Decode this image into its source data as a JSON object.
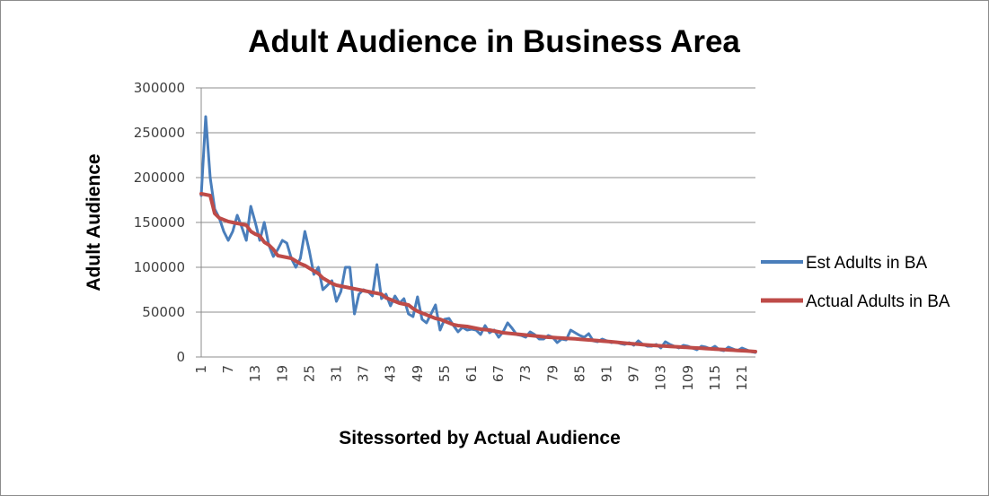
{
  "chart_data": {
    "type": "line",
    "title": "Adult Audience in Business Area",
    "xlabel": "Sitessorted by Actual Audience",
    "ylabel": "Adult Audience",
    "ylim": [
      0,
      300000
    ],
    "yticks": [
      0,
      50000,
      100000,
      150000,
      200000,
      250000,
      300000
    ],
    "ytick_labels": [
      "0",
      "50000",
      "100000",
      "150000",
      "200000",
      "250000",
      "300000"
    ],
    "xlim": [
      1,
      124
    ],
    "xticks": [
      1,
      7,
      13,
      19,
      25,
      31,
      37,
      43,
      49,
      55,
      61,
      67,
      73,
      79,
      85,
      91,
      97,
      103,
      109,
      115,
      121
    ],
    "xtick_labels": [
      "1",
      "7",
      "13",
      "19",
      "25",
      "31",
      "37",
      "43",
      "49",
      "55",
      "61",
      "67",
      "73",
      "79",
      "85",
      "91",
      "97",
      "103",
      "109",
      "115",
      "121"
    ],
    "grid": true,
    "legend_position": "right",
    "series": [
      {
        "name": "Est Adults in BA",
        "color": "#4a7ebb",
        "values": [
          180000,
          268000,
          200000,
          165000,
          155000,
          140000,
          130000,
          140000,
          158000,
          145000,
          130000,
          168000,
          150000,
          130000,
          150000,
          125000,
          112000,
          120000,
          130000,
          127000,
          110000,
          100000,
          110000,
          140000,
          118000,
          92000,
          100000,
          75000,
          80000,
          85000,
          62000,
          73000,
          100000,
          100000,
          48000,
          70000,
          75000,
          73000,
          68000,
          103000,
          65000,
          70000,
          57000,
          68000,
          60000,
          65000,
          48000,
          45000,
          67000,
          42000,
          38000,
          48000,
          58000,
          30000,
          42000,
          43000,
          35000,
          28000,
          33000,
          30000,
          31000,
          30000,
          25000,
          35000,
          27000,
          30000,
          22000,
          28000,
          38000,
          32000,
          25000,
          24000,
          22000,
          28000,
          25000,
          20000,
          20000,
          24000,
          22000,
          16000,
          20000,
          19000,
          30000,
          27000,
          24000,
          22000,
          26000,
          18000,
          17000,
          20000,
          18000,
          16000,
          17000,
          15000,
          14000,
          16000,
          13000,
          18000,
          14000,
          12000,
          12000,
          14000,
          10000,
          17000,
          14000,
          12000,
          10000,
          13000,
          12000,
          10000,
          8000,
          12000,
          11000,
          9000,
          12000,
          8000,
          7000,
          11000,
          9000,
          7000,
          10000,
          8000,
          6000,
          5000
        ]
      },
      {
        "name": "Actual Adults in BA",
        "color": "#be4b48",
        "values": [
          182000,
          181000,
          180000,
          160000,
          155000,
          153000,
          151000,
          150000,
          149000,
          148000,
          147000,
          140000,
          137000,
          135000,
          128000,
          125000,
          120000,
          113000,
          112000,
          111000,
          110000,
          107000,
          104000,
          102000,
          99000,
          96000,
          93000,
          88000,
          85000,
          82000,
          80000,
          79000,
          78000,
          77000,
          76000,
          75000,
          74000,
          73000,
          72000,
          71000,
          70000,
          66000,
          64000,
          62000,
          60000,
          59000,
          58000,
          54000,
          51000,
          49000,
          47000,
          45000,
          43000,
          42000,
          40000,
          38000,
          36000,
          35000,
          34500,
          34000,
          33000,
          32000,
          31000,
          30500,
          30000,
          29000,
          28000,
          27000,
          26500,
          26000,
          25500,
          25000,
          24500,
          24000,
          23500,
          23000,
          22500,
          22000,
          21700,
          21400,
          21100,
          20800,
          20500,
          20200,
          19800,
          19400,
          19000,
          18600,
          18200,
          17800,
          17400,
          17000,
          16500,
          16000,
          15500,
          15000,
          14600,
          14200,
          13800,
          13400,
          13000,
          12700,
          12400,
          12100,
          11800,
          11500,
          11200,
          10900,
          10600,
          10300,
          10000,
          9700,
          9400,
          9100,
          8800,
          8500,
          8200,
          7900,
          7600,
          7300,
          7000,
          6700,
          6400,
          6000
        ]
      }
    ]
  }
}
